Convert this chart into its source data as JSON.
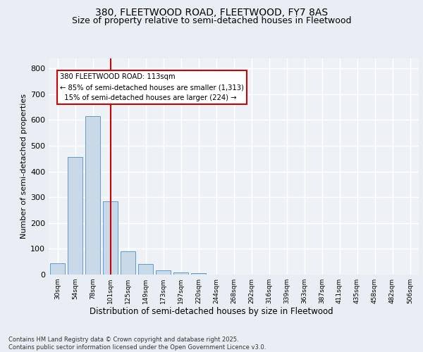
{
  "title1": "380, FLEETWOOD ROAD, FLEETWOOD, FY7 8AS",
  "title2": "Size of property relative to semi-detached houses in Fleetwood",
  "xlabel": "Distribution of semi-detached houses by size in Fleetwood",
  "ylabel": "Number of semi-detached properties",
  "bins": [
    "30sqm",
    "54sqm",
    "78sqm",
    "101sqm",
    "125sqm",
    "149sqm",
    "173sqm",
    "197sqm",
    "220sqm",
    "244sqm",
    "268sqm",
    "292sqm",
    "316sqm",
    "339sqm",
    "363sqm",
    "387sqm",
    "411sqm",
    "435sqm",
    "458sqm",
    "482sqm",
    "506sqm"
  ],
  "values": [
    45,
    455,
    615,
    285,
    90,
    40,
    17,
    8,
    5,
    0,
    0,
    0,
    0,
    0,
    0,
    0,
    0,
    0,
    0,
    0,
    0
  ],
  "bar_color": "#c9d9e8",
  "bar_edge_color": "#5b9bd5",
  "property_line_color": "#cc0000",
  "annotation_text": "380 FLEETWOOD ROAD: 113sqm\n← 85% of semi-detached houses are smaller (1,313)\n  15% of semi-detached houses are larger (224) →",
  "annotation_box_color": "#ffffff",
  "annotation_box_edge_color": "#cc0000",
  "ylim": [
    0,
    840
  ],
  "yticks": [
    0,
    100,
    200,
    300,
    400,
    500,
    600,
    700,
    800
  ],
  "footer": "Contains HM Land Registry data © Crown copyright and database right 2025.\nContains public sector information licensed under the Open Government Licence v3.0.",
  "bg_color": "#e8eef4",
  "plot_bg_color": "#eef2f7",
  "grid_color": "#ffffff",
  "title_fontsize": 10,
  "subtitle_fontsize": 9
}
